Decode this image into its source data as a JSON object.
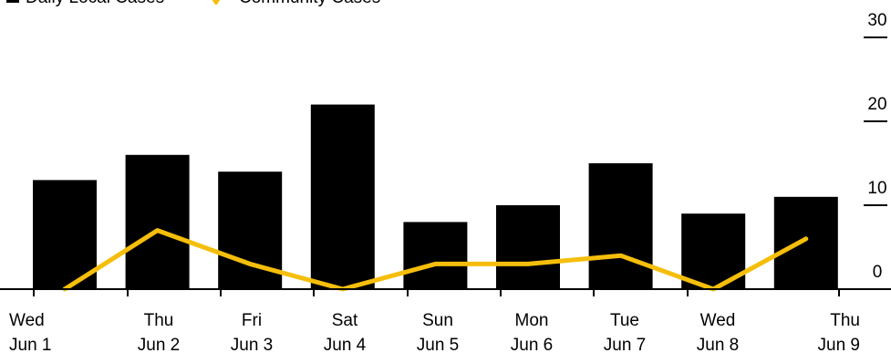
{
  "chart_data": {
    "type": "bar",
    "categories": [
      [
        "Wed",
        "Jun 1"
      ],
      [
        "Thu",
        "Jun 2"
      ],
      [
        "Fri",
        "Jun 3"
      ],
      [
        "Sat",
        "Jun 4"
      ],
      [
        "Sun",
        "Jun 5"
      ],
      [
        "Mon",
        "Jun 6"
      ],
      [
        "Tue",
        "Jun 7"
      ],
      [
        "Wed",
        "Jun 8"
      ],
      [
        "Thu",
        "Jun 9"
      ]
    ],
    "series": [
      {
        "name": "Daily Local Cases",
        "type": "bar",
        "color": "#000000",
        "values": [
          13,
          16,
          14,
          22,
          8,
          10,
          15,
          9,
          11
        ]
      },
      {
        "name": "Community Cases",
        "type": "line",
        "color": "#f5be0b",
        "values": [
          0,
          7,
          3,
          0,
          3,
          3,
          4,
          0,
          6
        ]
      }
    ],
    "yticks": [
      0,
      10,
      20,
      30
    ],
    "ylim": [
      0,
      30
    ],
    "y_axis_position": "right",
    "legend_position": "top-left",
    "title": "",
    "xlabel": "",
    "ylabel": ""
  }
}
